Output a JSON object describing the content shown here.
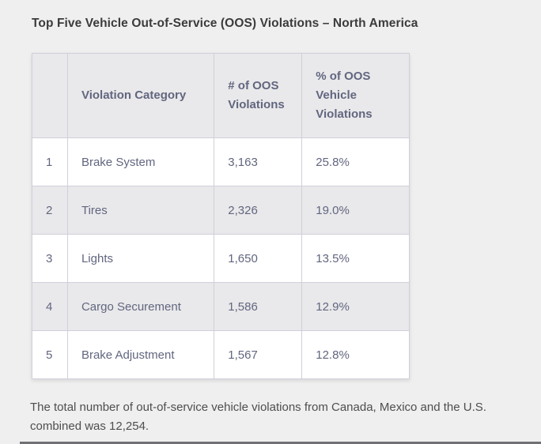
{
  "page": {
    "title": "Top Five Vehicle Out-of-Service (OOS) Violations – North America",
    "footer_note": "The total number of out-of-service vehicle violations from Canada, Mexico and the U.S. combined was 12,254.",
    "total_violations": "12,254"
  },
  "table": {
    "headers": {
      "rank": "",
      "category": "Violation Category",
      "count": "# of OOS Violations",
      "percent": "% of OOS Vehicle Violations"
    },
    "rows": [
      {
        "rank": "1",
        "category": "Brake System",
        "count": "3,163",
        "percent": "25.8%"
      },
      {
        "rank": "2",
        "category": "Tires",
        "count": "2,326",
        "percent": "19.0%"
      },
      {
        "rank": "3",
        "category": "Lights",
        "count": "1,650",
        "percent": "13.5%"
      },
      {
        "rank": "4",
        "category": "Cargo Securement",
        "count": "1,586",
        "percent": "12.9%"
      },
      {
        "rank": "5",
        "category": "Brake Adjustment",
        "count": "1,567",
        "percent": "12.8%"
      }
    ]
  },
  "colors": {
    "page_bg": "#efefef",
    "title_text": "#3b3b3b",
    "table_text": "#62667f",
    "row_alt_bg": "#e9e9eb",
    "row_bg": "#ffffff",
    "border": "#cfd0da",
    "footer_text": "#4e4e4e",
    "bottom_divider": "#717175"
  }
}
